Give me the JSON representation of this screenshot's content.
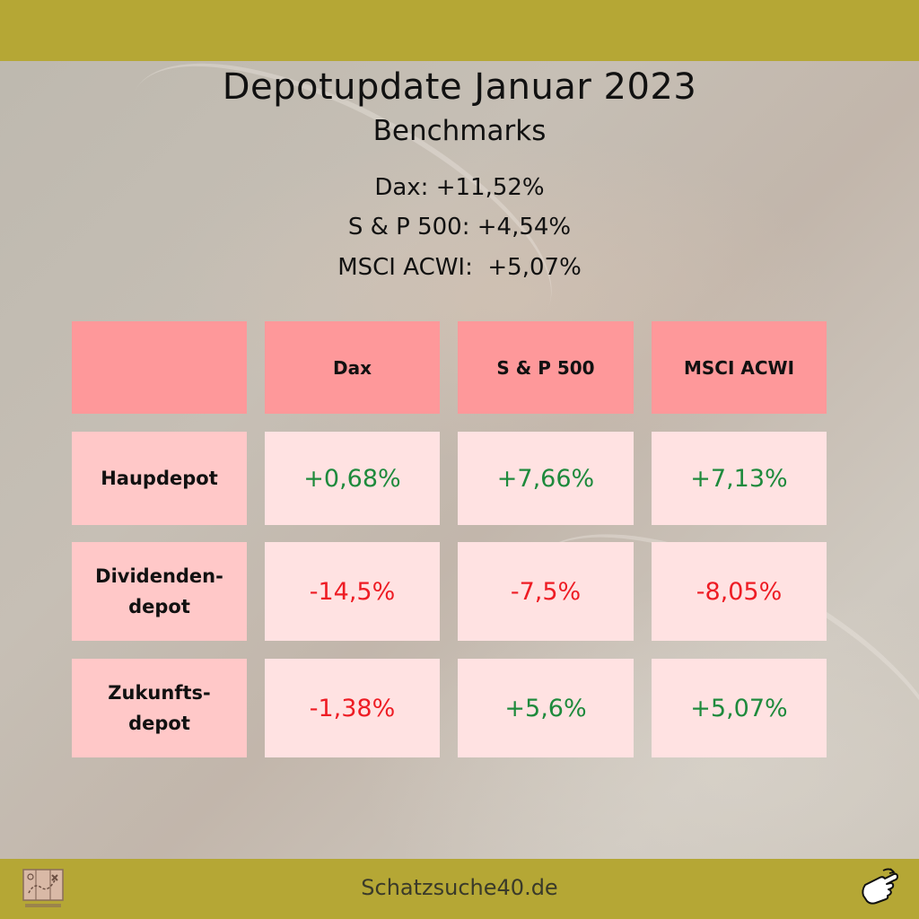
{
  "header": {
    "title": "Depotupdate Januar 2023",
    "subtitle": "Benchmarks"
  },
  "benchmarks": [
    "Dax: +11,52%",
    "S & P 500: +4,54%",
    "MSCI ACWI:  +5,07%"
  ],
  "table": {
    "columns": [
      "",
      "Dax",
      "S & P 500",
      "MSCI ACWI"
    ],
    "rows": [
      {
        "label": "Haupdepot",
        "values": [
          "+0,68%",
          "+7,66%",
          "+7,13%"
        ],
        "signs": [
          "pos",
          "pos",
          "pos"
        ]
      },
      {
        "label": "Dividenden-\ndepot",
        "values": [
          "-14,5%",
          "-7,5%",
          "-8,05%"
        ],
        "signs": [
          "neg",
          "neg",
          "neg"
        ]
      },
      {
        "label": "Zukunfts-\ndepot",
        "values": [
          "-1,38%",
          "+5,6%",
          "+5,07%"
        ],
        "signs": [
          "neg",
          "pos",
          "pos"
        ]
      }
    ]
  },
  "colors": {
    "bar": "#b5a735",
    "header_cell": "#fe989a",
    "label_cell": "#ffc8c8",
    "value_cell": "#ffe2e2",
    "positive": "#1e8a3c",
    "negative": "#ee1c24"
  },
  "footer": {
    "website": "Schatzsuche40.de",
    "logo_icon": "treasure-map-icon",
    "hand_icon": "pointing-hand-icon"
  }
}
